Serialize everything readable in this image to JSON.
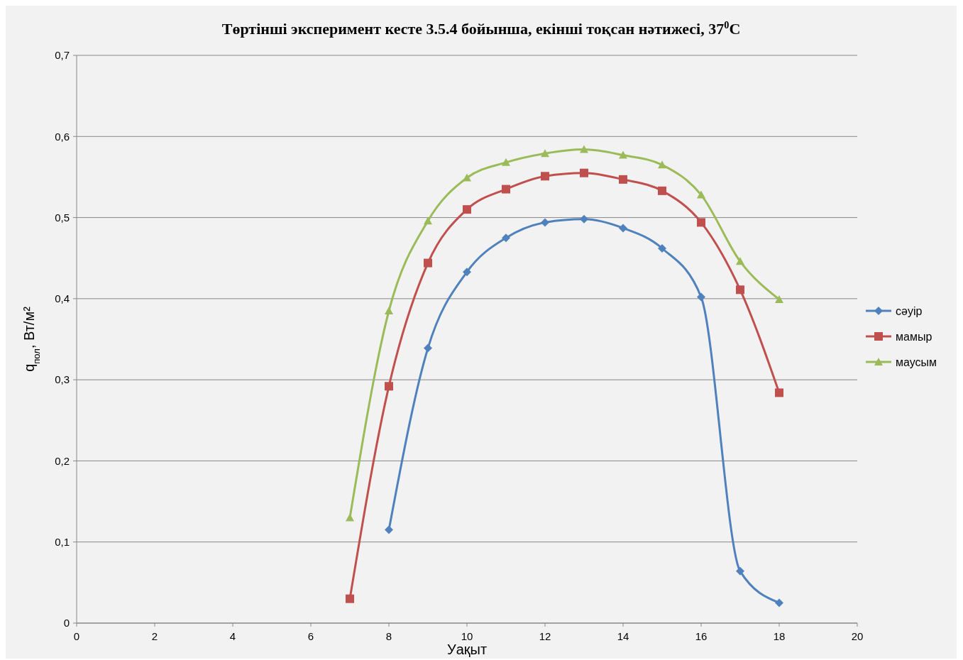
{
  "chart_data": {
    "type": "line",
    "title": "Төртінші эксперимент кесте 3.5.4 бойынша, екінші тоқсан нәтижесі, 37$^{0}$C",
    "xlabel": "Уақыт",
    "ylabel": "q$_{пол}$, Вт/м²",
    "x": [
      7,
      8,
      9,
      10,
      11,
      12,
      13,
      14,
      15,
      16,
      17,
      18
    ],
    "series": [
      {
        "name": "сәуір",
        "color": "#4f81bd",
        "marker": "diamond",
        "values": [
          null,
          0.115,
          0.339,
          0.433,
          0.475,
          0.494,
          0.498,
          0.487,
          0.462,
          0.402,
          0.064,
          0.025
        ]
      },
      {
        "name": "мамыр",
        "color": "#c0504d",
        "marker": "square",
        "values": [
          0.03,
          0.292,
          0.444,
          0.51,
          0.535,
          0.551,
          0.555,
          0.547,
          0.533,
          0.494,
          0.411,
          0.284
        ]
      },
      {
        "name": "маусым",
        "color": "#9bbb59",
        "marker": "triangle",
        "values": [
          0.13,
          0.385,
          0.496,
          0.549,
          0.568,
          0.579,
          0.584,
          0.577,
          0.565,
          0.528,
          0.446,
          0.399
        ]
      }
    ],
    "xlim": [
      0,
      20
    ],
    "xticks": [
      0,
      2,
      4,
      6,
      8,
      10,
      12,
      14,
      16,
      18,
      20
    ],
    "ylim": [
      0,
      0.7
    ],
    "yticks": [
      0,
      {
        "value": 0.1,
        "label": "0,1"
      },
      {
        "value": 0.2,
        "label": "0,2"
      },
      {
        "value": 0.3,
        "label": "0,3"
      },
      {
        "value": 0.4,
        "label": "0,4"
      },
      {
        "value": 0.5,
        "label": "0,5"
      },
      {
        "value": 0.6,
        "label": "0,6"
      },
      {
        "value": 0.7,
        "label": "0,7"
      }
    ],
    "grid": "y",
    "legend": "right",
    "line_style": "solid"
  }
}
